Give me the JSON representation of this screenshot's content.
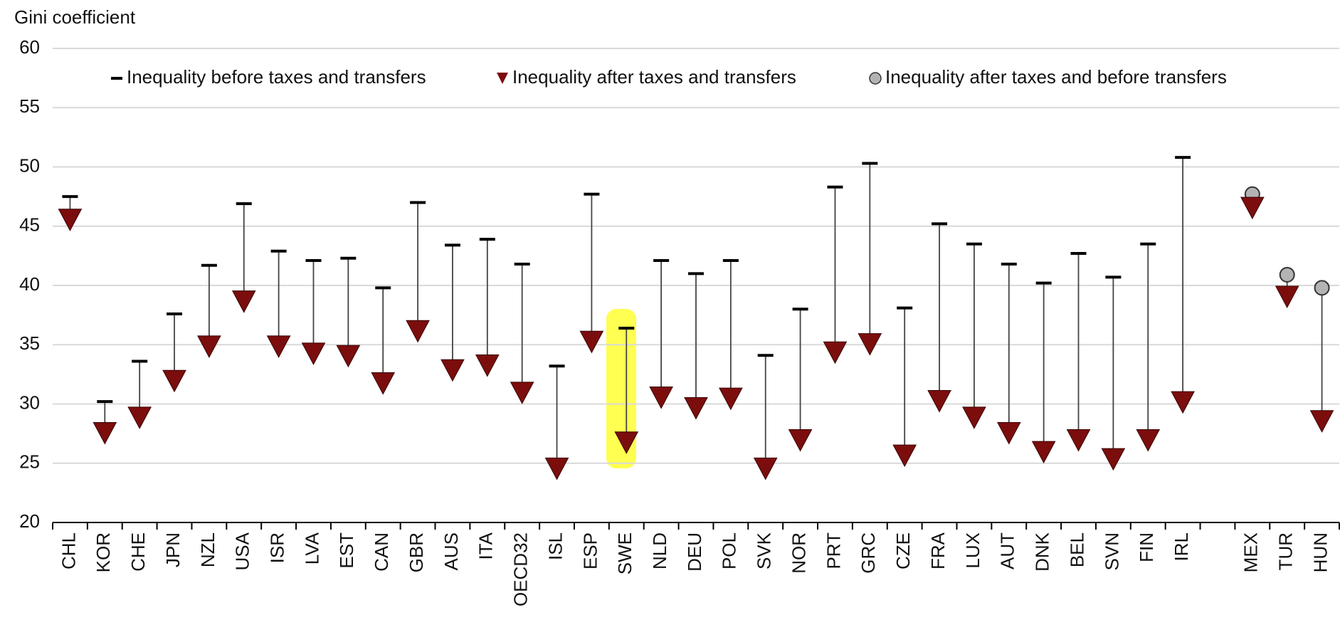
{
  "chart_data": {
    "type": "dot",
    "y_axis_label": "Gini coefficient",
    "categories": [
      "CHL",
      "KOR",
      "CHE",
      "JPN",
      "NZL",
      "USA",
      "ISR",
      "LVA",
      "EST",
      "CAN",
      "GBR",
      "AUS",
      "ITA",
      "OECD32",
      "ISL",
      "ESP",
      "SWE",
      "NLD",
      "DEU",
      "POL",
      "SVK",
      "NOR",
      "PRT",
      "GRC",
      "CZE",
      "FRA",
      "LUX",
      "AUT",
      "DNK",
      "BEL",
      "SVN",
      "FIN",
      "IRL",
      null,
      "MEX",
      "TUR",
      "HUN"
    ],
    "series": [
      {
        "name": "Inequality before taxes and transfers",
        "color": "#000000",
        "values": [
          47.5,
          30.2,
          33.6,
          37.6,
          41.7,
          46.9,
          42.9,
          42.1,
          42.3,
          39.8,
          47.0,
          43.4,
          43.9,
          41.8,
          33.2,
          47.7,
          36.4,
          42.1,
          41.0,
          42.1,
          34.1,
          38.0,
          48.3,
          50.3,
          38.1,
          45.2,
          43.5,
          41.8,
          40.2,
          42.7,
          40.7,
          43.5,
          50.8,
          null,
          null,
          null,
          null
        ]
      },
      {
        "name": "Inequality after taxes and transfers",
        "color": "#7b0d0d",
        "values": [
          45.6,
          27.6,
          28.9,
          32.0,
          34.9,
          38.7,
          34.9,
          34.3,
          34.1,
          31.8,
          36.2,
          32.9,
          33.3,
          31.0,
          24.6,
          35.3,
          26.8,
          30.6,
          29.7,
          30.5,
          24.6,
          27.0,
          34.4,
          35.1,
          25.7,
          30.3,
          28.9,
          27.6,
          26.0,
          27.0,
          25.4,
          27.0,
          30.2,
          null,
          46.6,
          39.1,
          28.6
        ]
      },
      {
        "name": "Inequality after taxes and before transfers",
        "color": "#b3b3b3",
        "values": [
          null,
          null,
          null,
          null,
          null,
          null,
          null,
          null,
          null,
          null,
          null,
          null,
          null,
          null,
          null,
          null,
          null,
          null,
          null,
          null,
          null,
          null,
          null,
          null,
          null,
          null,
          null,
          null,
          null,
          null,
          null,
          null,
          null,
          null,
          47.7,
          40.9,
          39.8
        ]
      }
    ],
    "ylim": [
      20,
      60
    ],
    "yticks": [
      20,
      25,
      30,
      35,
      40,
      45,
      50,
      55,
      60
    ],
    "grid": true,
    "legend": "top"
  }
}
